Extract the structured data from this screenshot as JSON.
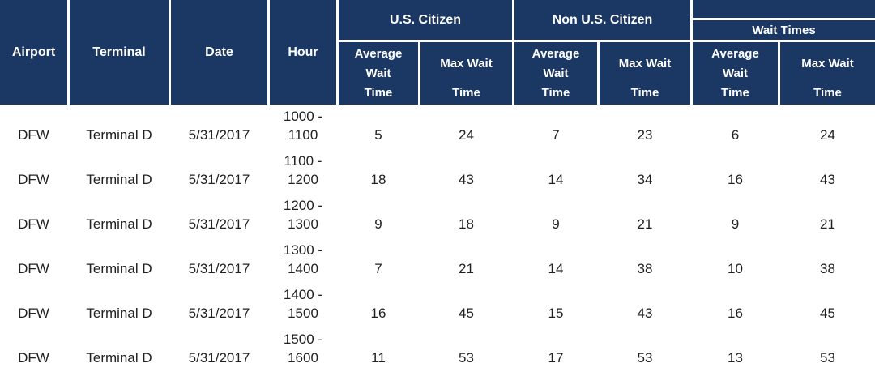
{
  "table": {
    "header": {
      "airport": "Airport",
      "terminal": "Terminal",
      "date": "Date",
      "hour": "Hour",
      "groups": {
        "us_citizen": "U.S. Citizen",
        "non_us_citizen": "Non U.S. Citizen",
        "wait_times": "Wait Times"
      },
      "sub": {
        "average_wait": "Average Wait",
        "max_wait": "Max Wait",
        "time": "Time"
      }
    },
    "rows": [
      {
        "airport": "DFW",
        "terminal": "Terminal D",
        "date": "5/31/2017",
        "hour_line1": "1000 -",
        "hour_line2": "1100",
        "us_avg": "5",
        "us_max": "24",
        "non_avg": "7",
        "non_max": "23",
        "wt_avg": "6",
        "wt_max": "24"
      },
      {
        "airport": "DFW",
        "terminal": "Terminal D",
        "date": "5/31/2017",
        "hour_line1": "1100 -",
        "hour_line2": "1200",
        "us_avg": "18",
        "us_max": "43",
        "non_avg": "14",
        "non_max": "34",
        "wt_avg": "16",
        "wt_max": "43"
      },
      {
        "airport": "DFW",
        "terminal": "Terminal D",
        "date": "5/31/2017",
        "hour_line1": "1200 -",
        "hour_line2": "1300",
        "us_avg": "9",
        "us_max": "18",
        "non_avg": "9",
        "non_max": "21",
        "wt_avg": "9",
        "wt_max": "21"
      },
      {
        "airport": "DFW",
        "terminal": "Terminal D",
        "date": "5/31/2017",
        "hour_line1": "1300 -",
        "hour_line2": "1400",
        "us_avg": "7",
        "us_max": "21",
        "non_avg": "14",
        "non_max": "38",
        "wt_avg": "10",
        "wt_max": "38"
      },
      {
        "airport": "DFW",
        "terminal": "Terminal D",
        "date": "5/31/2017",
        "hour_line1": "1400 -",
        "hour_line2": "1500",
        "us_avg": "16",
        "us_max": "45",
        "non_avg": "15",
        "non_max": "43",
        "wt_avg": "16",
        "wt_max": "45"
      },
      {
        "airport": "DFW",
        "terminal": "Terminal D",
        "date": "5/31/2017",
        "hour_line1": "1500 -",
        "hour_line2": "1600",
        "us_avg": "11",
        "us_max": "53",
        "non_avg": "17",
        "non_max": "53",
        "wt_avg": "13",
        "wt_max": "53"
      }
    ]
  },
  "colors": {
    "header_bg": "#1B3864",
    "header_text": "#FFFFFF",
    "body_text": "#212121",
    "grid_line": "#FFFFFF"
  }
}
